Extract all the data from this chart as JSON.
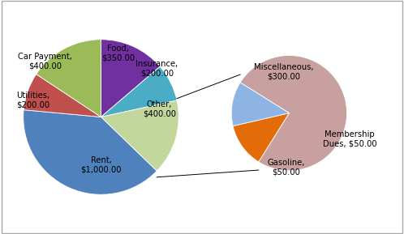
{
  "main_labels": [
    "Food,\n$350.00",
    "Insurance,\n$200.00",
    "Other,\n$400.00",
    "Rent,\n$1,000.00",
    "Utilities,\n$200.00",
    "Car Payment,\n$400.00"
  ],
  "main_values": [
    350,
    200,
    400,
    1000,
    200,
    400
  ],
  "main_colors": [
    "#7030a0",
    "#4bacc6",
    "#c3d69b",
    "#4f81bd",
    "#c0504d",
    "#9bbb59"
  ],
  "secondary_labels": [
    "Miscellaneous,\n$300.00",
    "Membership\nDues, $50.00",
    "Gasoline,\n$50.00"
  ],
  "secondary_values": [
    300,
    50,
    50
  ],
  "secondary_colors": [
    "#c9a0a0",
    "#e36c09",
    "#8db4e2"
  ],
  "background_color": "#ffffff",
  "text_color": "#000000",
  "font_size": 7.2,
  "main_startangle": 90,
  "sec_startangle": 148
}
